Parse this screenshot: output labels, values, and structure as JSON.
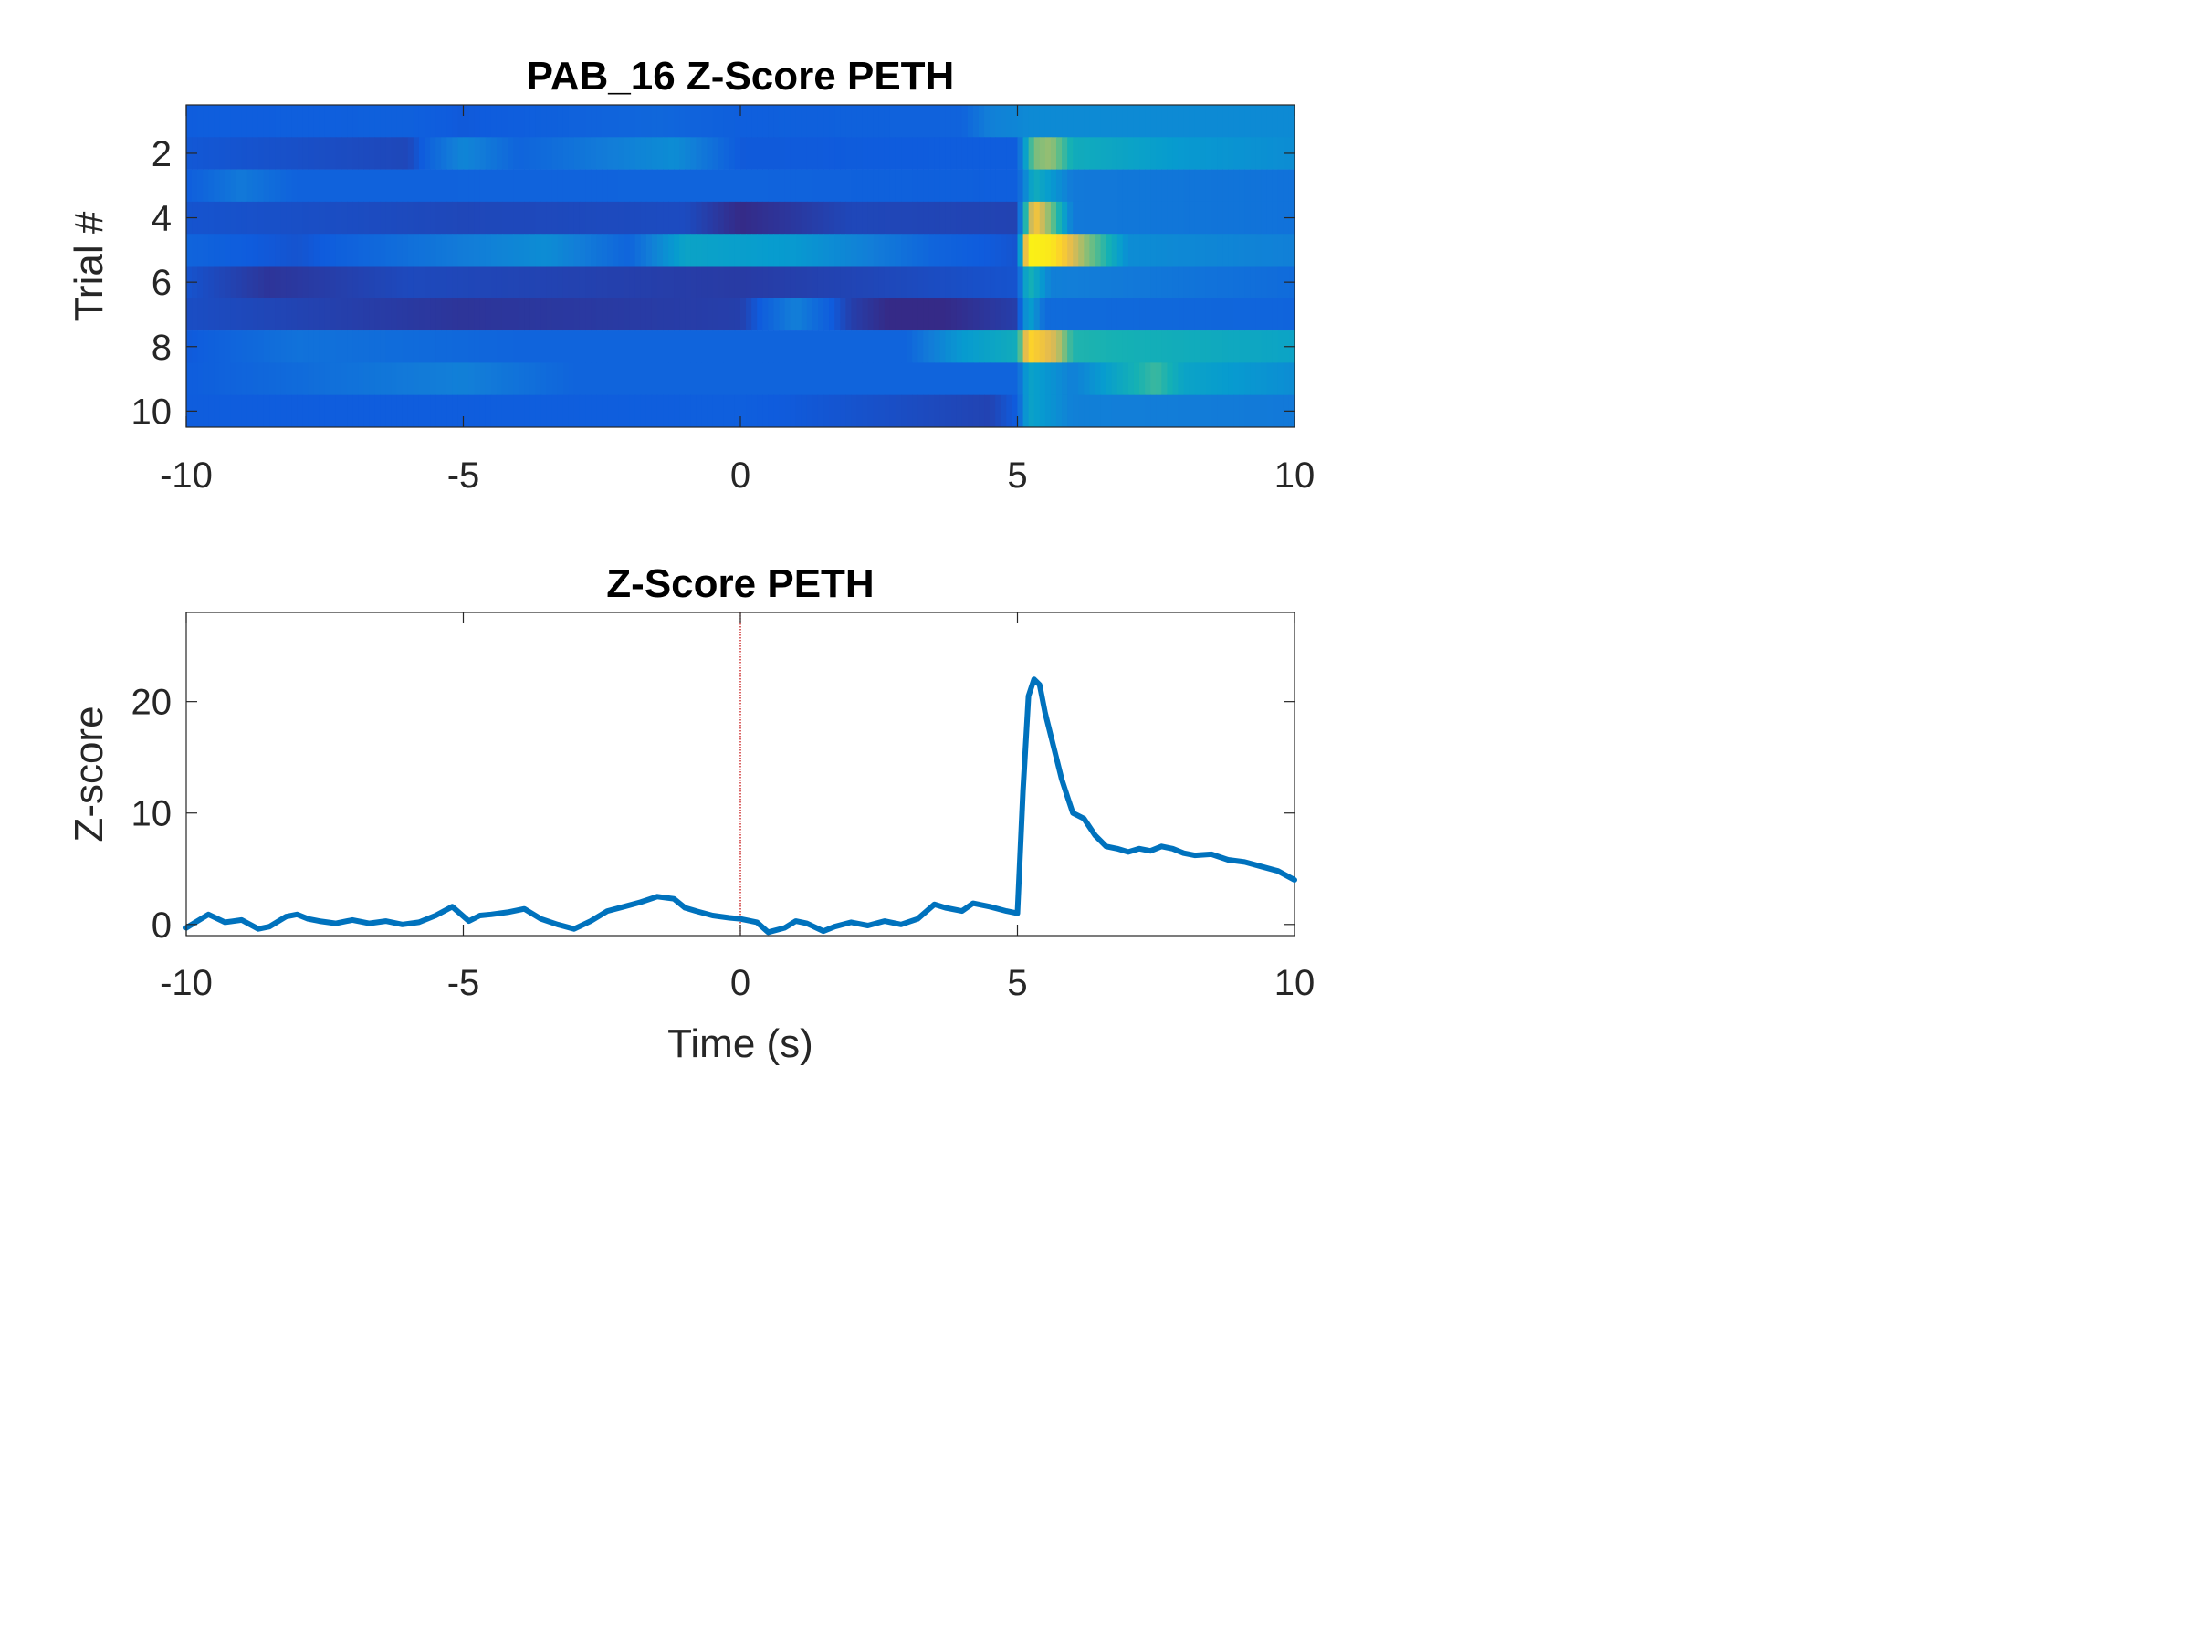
{
  "chart_data": [
    {
      "type": "heatmap",
      "title": "PAB_16  Z-Score PETH",
      "xlabel": "",
      "ylabel": "Trial #",
      "xlim": [
        -10,
        10
      ],
      "ylim": [
        0.5,
        10.5
      ],
      "x_ticks": [
        "-10",
        "-5",
        "0",
        "5",
        "10"
      ],
      "y_ticks": [
        "2",
        "4",
        "6",
        "8",
        "10"
      ],
      "colormap": "parula",
      "value_range": [
        -2,
        22
      ],
      "trials": [
        {
          "trial": 1,
          "points": [
            [
              -10,
              0.5
            ],
            [
              -6,
              0.7
            ],
            [
              -5,
              0.3
            ],
            [
              -1.5,
              1.2
            ],
            [
              0,
              0.6
            ],
            [
              4,
              0.9
            ],
            [
              4.5,
              3
            ],
            [
              5,
              3.5
            ],
            [
              5.2,
              3.8
            ],
            [
              10,
              3.8
            ]
          ]
        },
        {
          "trial": 2,
          "points": [
            [
              -10,
              0.2
            ],
            [
              -8,
              -0.2
            ],
            [
              -6,
              -0.6
            ],
            [
              -5,
              3.5
            ],
            [
              -4,
              1
            ],
            [
              -1.2,
              4
            ],
            [
              0,
              0.3
            ],
            [
              5,
              0.5
            ],
            [
              5.3,
              11
            ],
            [
              5.6,
              12
            ],
            [
              6,
              7
            ],
            [
              8,
              5
            ],
            [
              10,
              4
            ]
          ]
        },
        {
          "trial": 3,
          "points": [
            [
              -10,
              0.5
            ],
            [
              -9,
              2.5
            ],
            [
              -8,
              0.8
            ],
            [
              0,
              1
            ],
            [
              2,
              0.8
            ],
            [
              5,
              0.6
            ],
            [
              5.3,
              7
            ],
            [
              6,
              2.5
            ],
            [
              10,
              2
            ]
          ]
        },
        {
          "trial": 4,
          "points": [
            [
              -10,
              0
            ],
            [
              -5,
              -0.6
            ],
            [
              -1,
              -0.4
            ],
            [
              0,
              -2
            ],
            [
              2,
              -0.6
            ],
            [
              5,
              -0.8
            ],
            [
              5.3,
              17
            ],
            [
              5.6,
              11
            ],
            [
              6,
              2.5
            ],
            [
              10,
              2
            ]
          ]
        },
        {
          "trial": 5,
          "points": [
            [
              -10,
              1
            ],
            [
              -8,
              0
            ],
            [
              -3.5,
              4
            ],
            [
              -2,
              1
            ],
            [
              -1,
              6
            ],
            [
              0,
              5.5
            ],
            [
              1,
              5
            ],
            [
              3.5,
              1
            ],
            [
              5,
              0
            ],
            [
              5.2,
              21
            ],
            [
              5.6,
              20
            ],
            [
              6.2,
              12
            ],
            [
              7,
              4
            ],
            [
              10,
              3
            ]
          ]
        },
        {
          "trial": 6,
          "points": [
            [
              -10,
              0
            ],
            [
              -8.5,
              -1.5
            ],
            [
              -6,
              -0.5
            ],
            [
              0,
              -1.2
            ],
            [
              3,
              -0.5
            ],
            [
              5,
              0
            ],
            [
              5.2,
              8
            ],
            [
              5.6,
              3
            ],
            [
              10,
              1.5
            ]
          ]
        },
        {
          "trial": 7,
          "points": [
            [
              -10,
              -0.3
            ],
            [
              -5,
              -1.5
            ],
            [
              0,
              -1
            ],
            [
              1,
              3
            ],
            [
              2,
              -1
            ],
            [
              3,
              -2.5
            ],
            [
              5,
              -1
            ],
            [
              5.2,
              6
            ],
            [
              5.5,
              1.5
            ],
            [
              10,
              1
            ]
          ]
        },
        {
          "trial": 8,
          "points": [
            [
              -10,
              0.3
            ],
            [
              -8,
              2
            ],
            [
              -4,
              1
            ],
            [
              0,
              1
            ],
            [
              3,
              1
            ],
            [
              4,
              5
            ],
            [
              5,
              7
            ],
            [
              5.2,
              18
            ],
            [
              5.7,
              14
            ],
            [
              6,
              8
            ],
            [
              10,
              6
            ]
          ]
        },
        {
          "trial": 9,
          "points": [
            [
              -10,
              0.5
            ],
            [
              -5,
              3
            ],
            [
              -3,
              1
            ],
            [
              0,
              1
            ],
            [
              5,
              1
            ],
            [
              5.2,
              6
            ],
            [
              6,
              3
            ],
            [
              7.5,
              9
            ],
            [
              8,
              6
            ],
            [
              10,
              4
            ]
          ]
        },
        {
          "trial": 10,
          "points": [
            [
              -10,
              0.5
            ],
            [
              -5,
              0.5
            ],
            [
              0,
              0.6
            ],
            [
              4.5,
              -0.8
            ],
            [
              5,
              0.5
            ],
            [
              5.2,
              6
            ],
            [
              6,
              3
            ],
            [
              10,
              2.5
            ]
          ]
        }
      ]
    },
    {
      "type": "line",
      "title": "Z-Score PETH",
      "xlabel": "Time (s)",
      "ylabel": "Z-score",
      "xlim": [
        -10,
        10
      ],
      "ylim": [
        -1,
        28
      ],
      "x_ticks": [
        "-10",
        "-5",
        "0",
        "5",
        "10"
      ],
      "y_ticks": [
        "0",
        "10",
        "20"
      ],
      "reference_line": {
        "x": 0,
        "color": "#c00000",
        "style": "dotted"
      },
      "series": [
        {
          "color": "#0072bd",
          "x": [
            -10,
            -9.6,
            -9.3,
            -9,
            -8.7,
            -8.5,
            -8.2,
            -8,
            -7.8,
            -7.6,
            -7.3,
            -7,
            -6.7,
            -6.4,
            -6.1,
            -5.8,
            -5.5,
            -5.2,
            -4.9,
            -4.7,
            -4.5,
            -4.2,
            -3.9,
            -3.6,
            -3.3,
            -3.0,
            -2.7,
            -2.4,
            -2.1,
            -1.8,
            -1.5,
            -1.2,
            -1.0,
            -0.8,
            -0.5,
            -0.2,
            0,
            0.3,
            0.5,
            0.8,
            1.0,
            1.2,
            1.5,
            1.7,
            2.0,
            2.3,
            2.6,
            2.9,
            3.2,
            3.5,
            3.7,
            4.0,
            4.2,
            4.5,
            4.8,
            5.0,
            5.1,
            5.2,
            5.3,
            5.4,
            5.5,
            5.6,
            5.7,
            5.8,
            5.9,
            6.0,
            6.2,
            6.4,
            6.6,
            6.8,
            7.0,
            7.2,
            7.4,
            7.6,
            7.8,
            8.0,
            8.2,
            8.5,
            8.8,
            9.1,
            9.4,
            9.7,
            10
          ],
          "y": [
            -0.3,
            0.9,
            0.2,
            0.4,
            -0.4,
            -0.2,
            0.7,
            0.9,
            0.5,
            0.3,
            0.1,
            0.4,
            0.1,
            0.3,
            0,
            0.2,
            0.8,
            1.6,
            0.3,
            0.8,
            0.9,
            1.1,
            1.4,
            0.5,
            0,
            -0.4,
            0.3,
            1.2,
            1.6,
            2.0,
            2.5,
            2.3,
            1.5,
            1.2,
            0.8,
            0.6,
            0.5,
            0.2,
            -0.7,
            -0.3,
            0.3,
            0.1,
            -0.6,
            -0.2,
            0.2,
            -0.1,
            0.3,
            0,
            0.5,
            1.8,
            1.5,
            1.2,
            1.9,
            1.6,
            1.2,
            1.0,
            12,
            20.5,
            22,
            21.5,
            19,
            17,
            15,
            13,
            11.5,
            10,
            9.5,
            8,
            7,
            6.8,
            6.5,
            6.8,
            6.6,
            7.0,
            6.8,
            6.4,
            6.2,
            6.3,
            5.8,
            5.6,
            5.2,
            4.8,
            4.0
          ]
        }
      ]
    }
  ]
}
